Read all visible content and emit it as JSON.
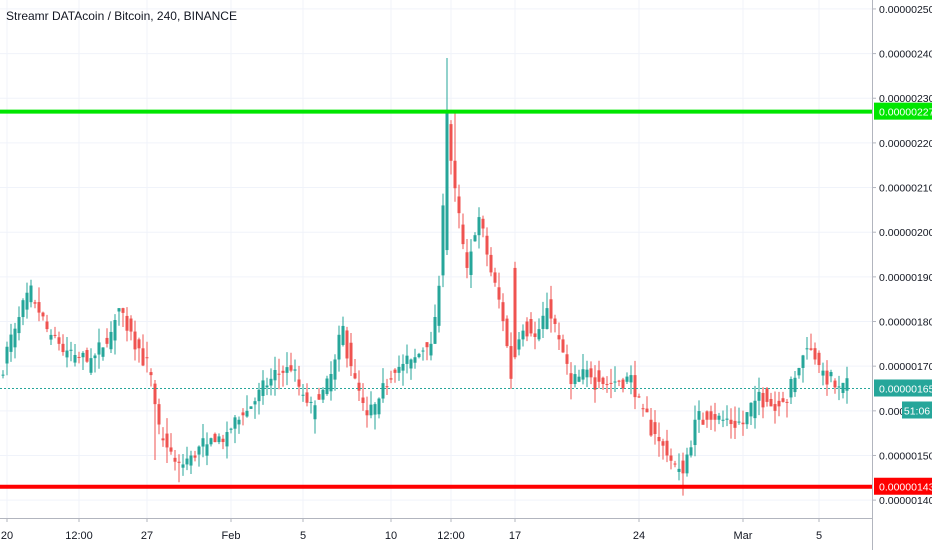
{
  "chart_data": {
    "type": "candlestick",
    "title": "Streamr DATAcoin / Bitcoin, 240, BINANCE",
    "y_ticks": [
      "0.00000140",
      "0.00000150",
      "0.00000160",
      "0.00000170",
      "0.00000180",
      "0.00000190",
      "0.00000200",
      "0.00000210",
      "0.00000220",
      "0.00000230",
      "0.00000240",
      "0.00000250"
    ],
    "y_tick_values": [
      140,
      150,
      160,
      170,
      180,
      190,
      200,
      210,
      220,
      230,
      240,
      250
    ],
    "ylim": [
      136,
      252
    ],
    "x_ticks": [
      "20",
      "12:00",
      "27",
      "Feb",
      "5",
      "10",
      "12:00",
      "17",
      "24",
      "Mar",
      "5"
    ],
    "x_tick_index": [
      1,
      19,
      36,
      57,
      75,
      97,
      112,
      128,
      159,
      185,
      204
    ],
    "candle_count": 212,
    "overlays": {
      "resistance": {
        "value": 227,
        "label": "0.00000227",
        "color": "#00e600"
      },
      "support": {
        "value": 143,
        "label": "0.00000143",
        "color": "#ff0000"
      },
      "last_price": {
        "value": 165,
        "label": "0.00000165",
        "color": "#26a69a"
      },
      "countdown": "51:06"
    },
    "anchors": [
      [
        0,
        168
      ],
      [
        5,
        181
      ],
      [
        8,
        186
      ],
      [
        12,
        178
      ],
      [
        16,
        174
      ],
      [
        22,
        171
      ],
      [
        27,
        175
      ],
      [
        30,
        183
      ],
      [
        34,
        176
      ],
      [
        38,
        168
      ],
      [
        40,
        155
      ],
      [
        45,
        147
      ],
      [
        50,
        152
      ],
      [
        54,
        153
      ],
      [
        58,
        156
      ],
      [
        63,
        161
      ],
      [
        69,
        168
      ],
      [
        73,
        169
      ],
      [
        78,
        160
      ],
      [
        82,
        165
      ],
      [
        86,
        178
      ],
      [
        88,
        170
      ],
      [
        92,
        159
      ],
      [
        96,
        164
      ],
      [
        100,
        170
      ],
      [
        104,
        172
      ],
      [
        108,
        175
      ],
      [
        110,
        188
      ],
      [
        112,
        224
      ],
      [
        114,
        208
      ],
      [
        117,
        192
      ],
      [
        120,
        203
      ],
      [
        123,
        191
      ],
      [
        126,
        181
      ],
      [
        128,
        168
      ],
      [
        131,
        180
      ],
      [
        134,
        176
      ],
      [
        137,
        183
      ],
      [
        140,
        176
      ],
      [
        143,
        166
      ],
      [
        147,
        168
      ],
      [
        151,
        166
      ],
      [
        155,
        167
      ],
      [
        158,
        168
      ],
      [
        162,
        158
      ],
      [
        167,
        150
      ],
      [
        171,
        146
      ],
      [
        174,
        158
      ],
      [
        178,
        158
      ],
      [
        182,
        158
      ],
      [
        186,
        157
      ],
      [
        190,
        164
      ],
      [
        194,
        160
      ],
      [
        197,
        163
      ],
      [
        202,
        174
      ],
      [
        206,
        169
      ],
      [
        210,
        164
      ],
      [
        212,
        165
      ]
    ],
    "colors": {
      "up": "#26a69a",
      "down": "#ef5350"
    }
  }
}
